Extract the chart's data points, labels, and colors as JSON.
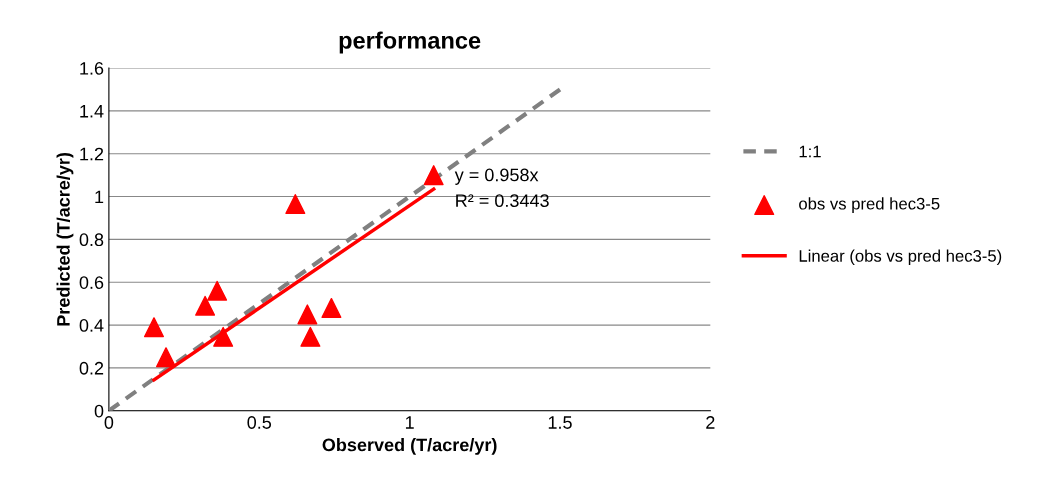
{
  "chart_data": {
    "type": "scatter",
    "title": "performance",
    "xlabel": "Observed (T/acre/yr)",
    "ylabel": "Predicted (T/acre/yr)",
    "xlim": [
      0,
      2
    ],
    "xticks": [
      0,
      0.5,
      1,
      1.5,
      2
    ],
    "ylim": [
      0,
      1.6
    ],
    "yticks": [
      0,
      0.2,
      0.4,
      0.6,
      0.8,
      1,
      1.2,
      1.4,
      1.6
    ],
    "grid": "y",
    "legend": "right",
    "series": [
      {
        "name": "1:1",
        "type": "line",
        "color": "#808080",
        "line_style": "dashed",
        "marker": "none",
        "x": [
          0,
          1.5
        ],
        "values": [
          0,
          1.5
        ]
      },
      {
        "name": "obs vs pred hec3-5",
        "color": "#ff0000",
        "marker": "triangle",
        "x": [
          0.15,
          0.19,
          0.32,
          0.36,
          0.38,
          0.62,
          0.66,
          0.67,
          0.74,
          1.08
        ],
        "values": [
          0.39,
          0.25,
          0.49,
          0.56,
          0.345,
          0.965,
          0.45,
          0.345,
          0.48,
          1.1
        ]
      },
      {
        "name": "Linear (obs vs pred hec3-5)",
        "type": "line",
        "color": "#ff0000",
        "line_style": "solid",
        "marker": "none",
        "x": [
          0.15,
          1.08
        ],
        "values": [
          0.144,
          1.035
        ]
      }
    ],
    "annotations": [
      "y = 0.958x",
      "R² = 0.3443"
    ]
  }
}
